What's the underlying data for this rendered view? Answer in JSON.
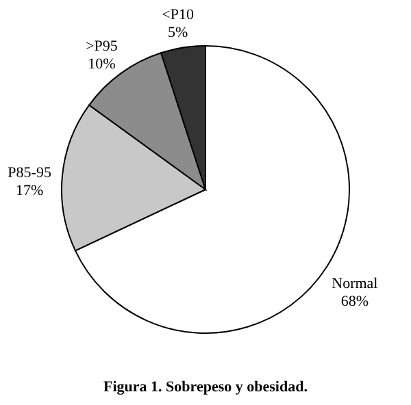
{
  "chart_data": {
    "type": "pie",
    "title": "Figura 1. Sobrepeso y obesidad.",
    "categories": [
      "Normal",
      "P85-95",
      ">P95",
      "<P10"
    ],
    "values": [
      68,
      17,
      10,
      5
    ],
    "value_labels": [
      "68%",
      "17%",
      "10%",
      "5%"
    ],
    "colors": [
      "#ffffff",
      "#c8c8c8",
      "#8c8c8c",
      "#333333"
    ],
    "legend": false
  }
}
